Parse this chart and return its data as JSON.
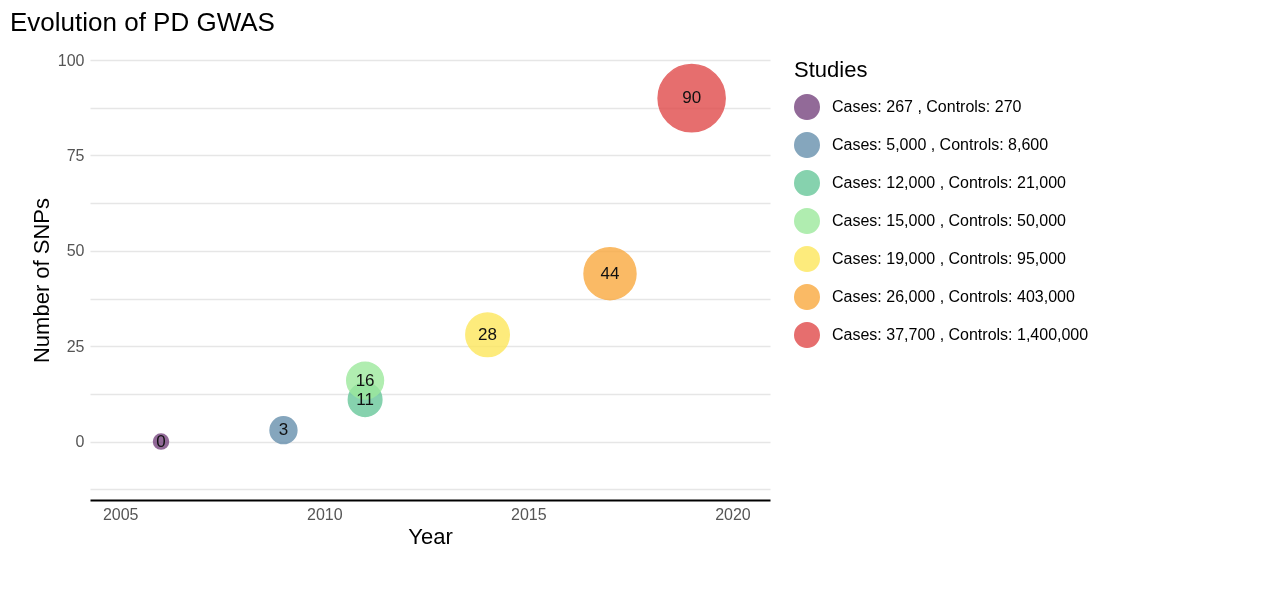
{
  "chart_data": {
    "type": "bubble",
    "title": "Evolution of PD GWAS",
    "xlabel": "Year",
    "ylabel": "Number of SNPs",
    "legend_title": "Studies",
    "legend": "right",
    "grid": "y",
    "data_labels": true,
    "xlim": [
      2004.26,
      2020.92
    ],
    "xticks": [
      2005,
      2010,
      2015,
      2020
    ],
    "ylim": [
      -15.3,
      100
    ],
    "yticks": [
      {
        "value": -12.5,
        "label": null
      },
      0,
      {
        "value": 12.5,
        "label": null
      },
      25,
      {
        "value": 37.5,
        "label": null
      },
      50,
      {
        "value": 62.5,
        "label": null
      },
      75,
      {
        "value": 87.5,
        "label": null
      },
      100
    ],
    "series": [
      {
        "name": "Cases: 267 , Controls: 270",
        "color": "#77457f",
        "x": [
          2006
        ],
        "values": [
          0
        ],
        "sizes": [
          0.05
        ]
      },
      {
        "name": "Cases: 5,000 , Controls: 8,600",
        "color": "#6790ad",
        "x": [
          2009
        ],
        "values": [
          3
        ],
        "sizes": [
          0.16
        ]
      },
      {
        "name": "Cases: 12,000 , Controls: 21,000",
        "color": "#68c79a",
        "x": [
          2011
        ],
        "values": [
          11
        ],
        "sizes": [
          0.25
        ]
      },
      {
        "name": "Cases: 15,000 , Controls: 50,000",
        "color": "#9de99d",
        "x": [
          2011
        ],
        "values": [
          16
        ],
        "sizes": [
          0.3
        ]
      },
      {
        "name": "Cases: 19,000 , Controls: 95,000",
        "color": "#fde75c",
        "x": [
          2014
        ],
        "values": [
          28
        ],
        "sizes": [
          0.42
        ]
      },
      {
        "name": "Cases: 26,000 , Controls: 403,000",
        "color": "#f9a93f",
        "x": [
          2017
        ],
        "values": [
          44
        ],
        "sizes": [
          0.6
        ]
      },
      {
        "name": "Cases: 37,700 , Controls: 1,400,000",
        "color": "#e04a4a",
        "x": [
          2019
        ],
        "values": [
          90
        ],
        "sizes": [
          1
        ]
      }
    ]
  }
}
